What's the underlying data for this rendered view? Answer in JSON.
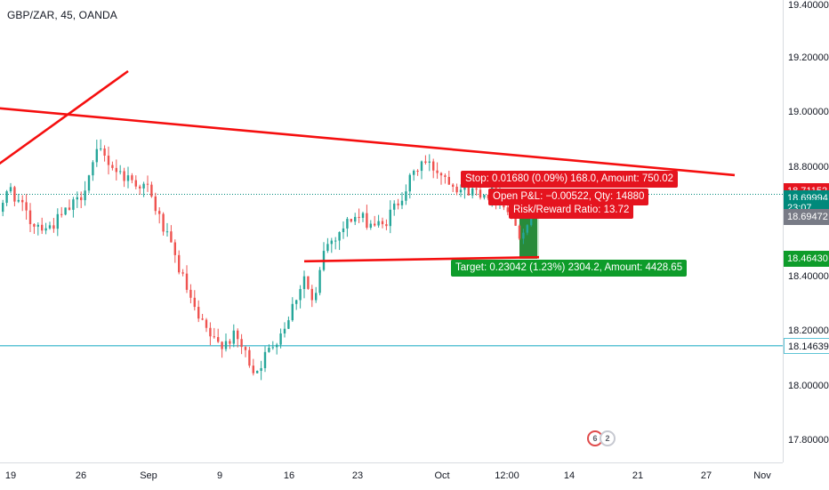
{
  "symbol_title": "GBP/ZAR, 45, OANDA",
  "price_axis": {
    "ticks": [
      "19.40000",
      "19.20000",
      "19.00000",
      "18.80000",
      "18.60000",
      "18.40000",
      "18.20000",
      "18.00000",
      "17.80000"
    ],
    "badges": {
      "stop_price": "18.71152",
      "last_price": "18.69994",
      "countdown": "23:07",
      "entry_price": "18.69472",
      "target_price": "18.46430",
      "horizontal_line_price": "18.14639"
    }
  },
  "time_axis": {
    "ticks": [
      "19",
      "26",
      "Sep",
      "9",
      "16",
      "23",
      "Oct",
      "12:00",
      "14",
      "21",
      "27",
      "Nov"
    ]
  },
  "position_tool": {
    "stop_label": "Stop: 0.01680 (0.09%) 168.0, Amount: 750.02",
    "pnl_label": "Open P&L: −0.00522, Qty: 14880",
    "ratio_label": "Risk/Reward Ratio: 13.72",
    "target_label": "Target: 0.23042 (1.23%) 2304.2, Amount: 4428.65"
  },
  "events": {
    "flag_a": "6",
    "flag_b": "2"
  },
  "colors": {
    "bull_candle": "#26a69a",
    "bear_candle": "#ef5350",
    "trendline": "#f50f0f",
    "horizontal_line": "#5fc4d6",
    "stop_zone": "#e5141f",
    "target_zone": "#0e9c2a",
    "price_badge_last": "#00897b",
    "price_badge_target": "#0e9c2a",
    "price_badge_stop": "#e5141f",
    "price_badge_entry": "#787b86"
  },
  "chart_data": {
    "type": "candlestick",
    "symbol": "GBP/ZAR",
    "interval": "45",
    "broker": "OANDA",
    "y_range": [
      17.72,
      19.41
    ],
    "x_range": [
      "Aug 17",
      "Nov 1"
    ],
    "close_path_key_points": [
      {
        "date": "Aug 17",
        "price": 18.6
      },
      {
        "date": "Aug 19",
        "price": 18.72
      },
      {
        "date": "Aug 21",
        "price": 18.6
      },
      {
        "date": "Aug 23",
        "price": 18.58
      },
      {
        "date": "Aug 26",
        "price": 18.68
      },
      {
        "date": "Aug 28",
        "price": 18.86
      },
      {
        "date": "Aug 30",
        "price": 18.78
      },
      {
        "date": "Sep 2",
        "price": 18.72
      },
      {
        "date": "Sep 5",
        "price": 18.45
      },
      {
        "date": "Sep 7",
        "price": 18.25
      },
      {
        "date": "Sep 9",
        "price": 18.15
      },
      {
        "date": "Sep 11",
        "price": 18.18
      },
      {
        "date": "Sep 13",
        "price": 18.05
      },
      {
        "date": "Sep 16",
        "price": 18.22
      },
      {
        "date": "Sep 18",
        "price": 18.4
      },
      {
        "date": "Sep 19",
        "price": 18.28
      },
      {
        "date": "Sep 20",
        "price": 18.5
      },
      {
        "date": "Sep 23",
        "price": 18.62
      },
      {
        "date": "Sep 26",
        "price": 18.58
      },
      {
        "date": "Sep 28",
        "price": 18.7
      },
      {
        "date": "Sep 30",
        "price": 18.82
      },
      {
        "date": "Oct 2",
        "price": 18.78
      },
      {
        "date": "Oct 4",
        "price": 18.72
      },
      {
        "date": "Oct 8",
        "price": 18.7
      },
      {
        "date": "Oct 10",
        "price": 18.56
      },
      {
        "date": "Oct 11",
        "price": 18.62
      },
      {
        "date": "Oct 12",
        "price": 18.7
      }
    ],
    "trendlines": [
      {
        "from": {
          "date": "Aug 17",
          "price": 18.79
        },
        "to": {
          "date": "Aug 31",
          "price": 19.15
        }
      },
      {
        "from": {
          "date": "Aug 13",
          "price": 19.03
        },
        "to": {
          "date": "Nov 1",
          "price": 18.77
        }
      },
      {
        "from": {
          "date": "Sep 18",
          "price": 18.455
        },
        "to": {
          "date": "Oct 12",
          "price": 18.47
        }
      }
    ],
    "horizontal_line": 18.14639,
    "long_position": {
      "entry": 18.69472,
      "stop": 18.71152,
      "target": 18.4643,
      "start_date": "Oct 10",
      "end_date": "Oct 12"
    },
    "grid": false,
    "legend": "top-left"
  }
}
